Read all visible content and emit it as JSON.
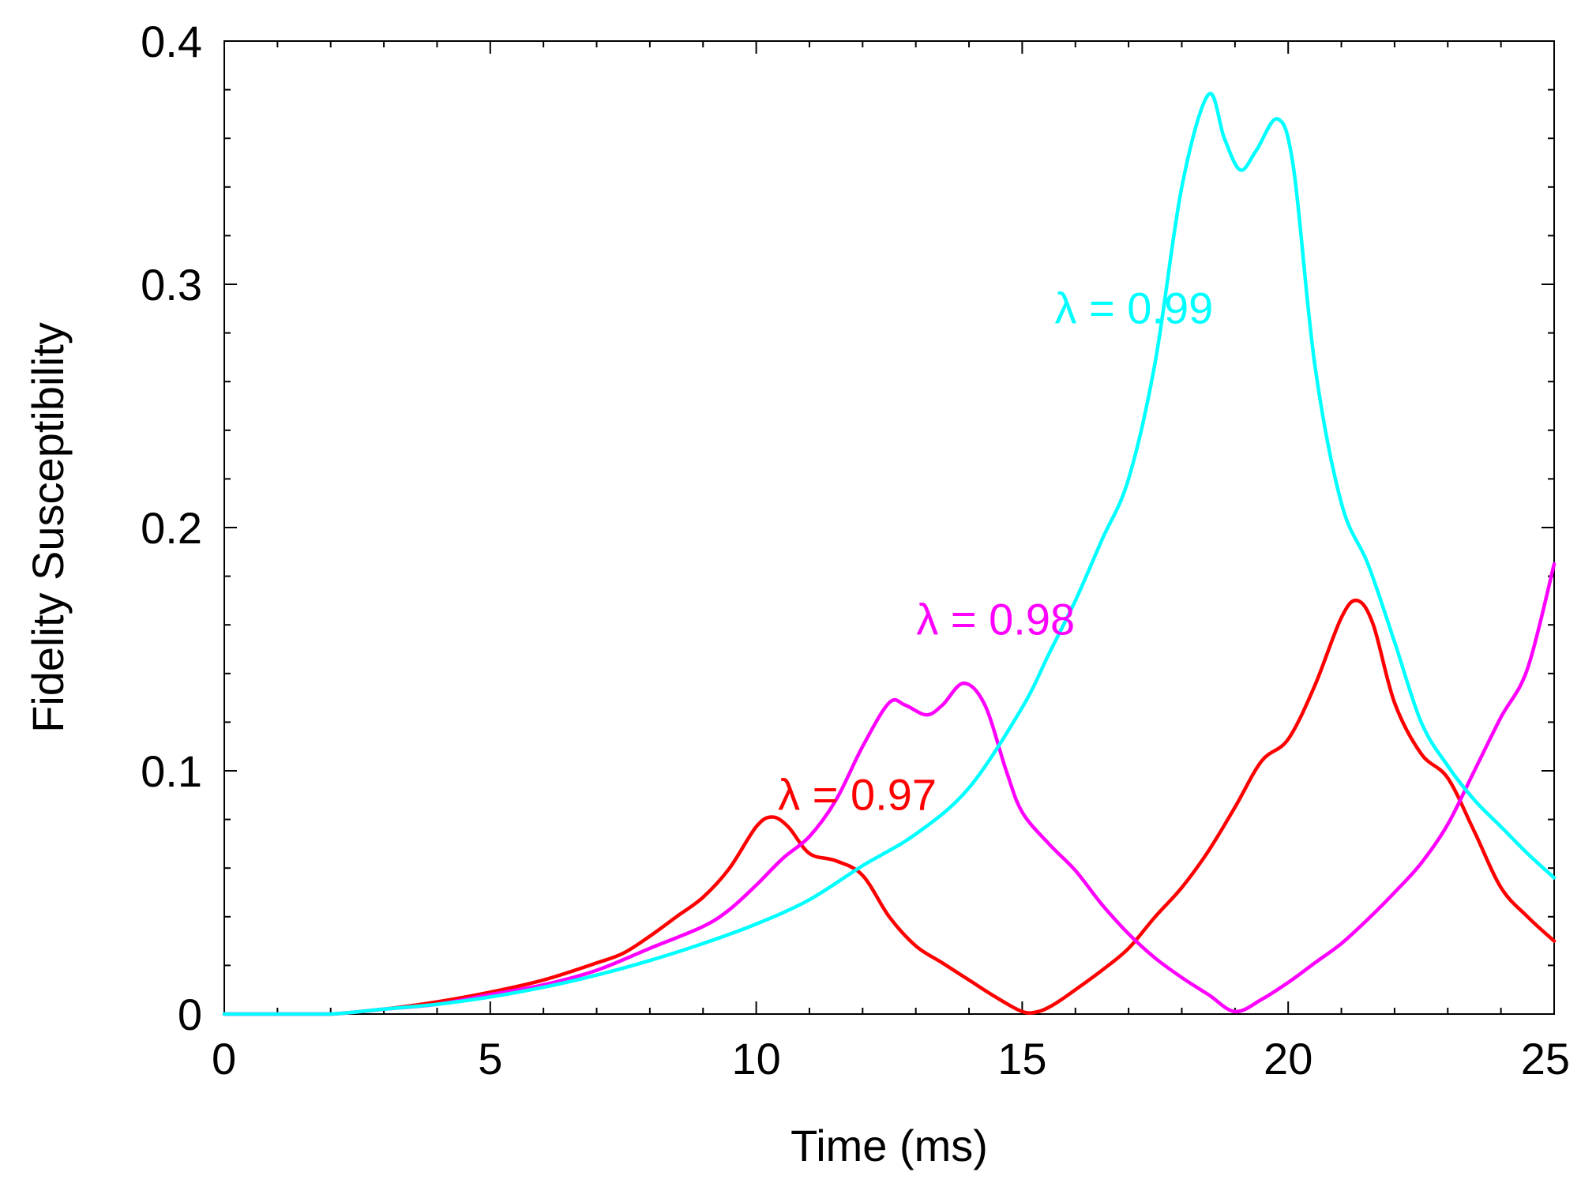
{
  "chart_data": {
    "type": "line",
    "title": "",
    "xlabel": "Time (ms)",
    "ylabel": "Fidelity Susceptibility",
    "xlim": [
      0,
      25
    ],
    "ylim": [
      0,
      0.4
    ],
    "grid": false,
    "legend": "inline labels",
    "x_ticks": [
      0,
      5,
      10,
      15,
      20,
      25
    ],
    "x_tick_labels": [
      "0",
      "5",
      "10",
      "15",
      "20",
      "25"
    ],
    "y_ticks": [
      0,
      0.1,
      0.2,
      0.3,
      0.4
    ],
    "y_tick_labels": [
      "0",
      "0.1",
      "0.2",
      "0.3",
      "0.4"
    ],
    "series": [
      {
        "name": "λ = 0.97",
        "color": "#ff0000",
        "x": [
          0,
          1,
          2,
          3,
          4,
          5,
          6,
          7,
          7.5,
          8,
          8.5,
          9,
          9.5,
          10,
          10.3,
          10.6,
          11,
          11.5,
          12,
          12.5,
          13,
          13.5,
          14,
          14.5,
          15,
          15.3,
          15.6,
          16,
          16.5,
          17,
          17.5,
          18,
          18.5,
          19,
          19.5,
          20,
          20.5,
          21,
          21.3,
          21.6,
          22,
          22.5,
          23,
          23.5,
          24,
          24.5,
          25
        ],
        "y": [
          0,
          0,
          0,
          0.002,
          0.005,
          0.009,
          0.014,
          0.021,
          0.025,
          0.032,
          0.04,
          0.048,
          0.06,
          0.077,
          0.081,
          0.077,
          0.066,
          0.063,
          0.057,
          0.04,
          0.028,
          0.021,
          0.014,
          0.007,
          0.001,
          0.001,
          0.004,
          0.01,
          0.018,
          0.027,
          0.04,
          0.052,
          0.067,
          0.085,
          0.104,
          0.113,
          0.135,
          0.163,
          0.17,
          0.16,
          0.128,
          0.107,
          0.097,
          0.075,
          0.052,
          0.04,
          0.03
        ]
      },
      {
        "name": "λ = 0.98",
        "color": "#ff00ff",
        "x": [
          0,
          1,
          2,
          3,
          4,
          5,
          6,
          7,
          8,
          9,
          9.5,
          10,
          10.5,
          11,
          11.5,
          12,
          12.5,
          12.8,
          13.2,
          13.5,
          13.9,
          14.3,
          14.7,
          15,
          15.5,
          16,
          16.5,
          17,
          17.5,
          18,
          18.5,
          19,
          19.5,
          20,
          20.5,
          21,
          21.5,
          22,
          22.5,
          23,
          23.5,
          24,
          24.5,
          25
        ],
        "y": [
          0,
          0,
          0,
          0.002,
          0.004,
          0.008,
          0.012,
          0.018,
          0.027,
          0.036,
          0.043,
          0.053,
          0.064,
          0.073,
          0.088,
          0.11,
          0.128,
          0.127,
          0.123,
          0.127,
          0.136,
          0.127,
          0.1,
          0.083,
          0.07,
          0.059,
          0.045,
          0.033,
          0.023,
          0.015,
          0.008,
          0.001,
          0.006,
          0.013,
          0.021,
          0.029,
          0.039,
          0.05,
          0.062,
          0.078,
          0.1,
          0.122,
          0.142,
          0.185
        ]
      },
      {
        "name": "λ = 0.99",
        "color": "#00ffff",
        "x": [
          0,
          1,
          2,
          3,
          4,
          5,
          6,
          7,
          8,
          9,
          10,
          11,
          12,
          13,
          14,
          15,
          15.5,
          16,
          16.5,
          17,
          17.5,
          18,
          18.5,
          18.8,
          19.1,
          19.4,
          19.8,
          20.1,
          20.5,
          21,
          21.5,
          22,
          22.5,
          23,
          23.5,
          24,
          24.5,
          25
        ],
        "y": [
          0,
          0,
          0,
          0.002,
          0.004,
          0.007,
          0.011,
          0.016,
          0.022,
          0.029,
          0.037,
          0.047,
          0.061,
          0.074,
          0.093,
          0.126,
          0.148,
          0.17,
          0.195,
          0.22,
          0.268,
          0.34,
          0.378,
          0.36,
          0.347,
          0.355,
          0.368,
          0.348,
          0.267,
          0.21,
          0.185,
          0.153,
          0.12,
          0.102,
          0.088,
          0.077,
          0.066,
          0.056
        ]
      }
    ],
    "annotations": [
      {
        "text": "λ = 0.99",
        "x": 17.1,
        "y": 0.284,
        "color": "#00ffff"
      },
      {
        "text": "λ = 0.98",
        "x": 14.5,
        "y": 0.156,
        "color": "#ff00ff"
      },
      {
        "text": "λ = 0.97",
        "x": 11.9,
        "y": 0.084,
        "color": "#ff0000"
      }
    ]
  }
}
